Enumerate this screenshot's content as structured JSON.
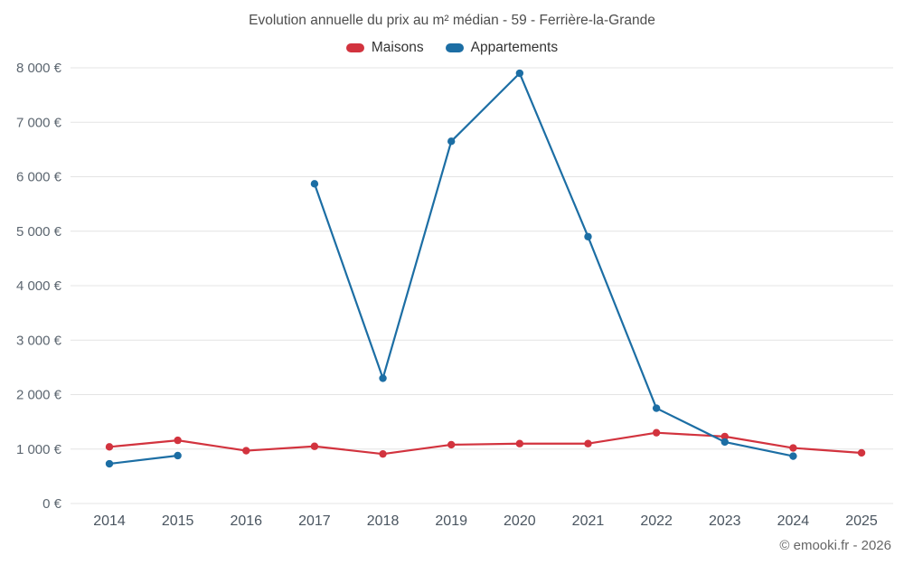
{
  "title": "Evolution annuelle du prix au m² médian - 59 - Ferrière-la-Grande",
  "footer": "© emooki.fr - 2026",
  "chart_data": {
    "type": "line",
    "title": "Evolution annuelle du prix au m² médian - 59 - Ferrière-la-Grande",
    "categories": [
      "2014",
      "2015",
      "2016",
      "2017",
      "2018",
      "2019",
      "2020",
      "2021",
      "2022",
      "2023",
      "2024",
      "2025"
    ],
    "series": [
      {
        "name": "Maisons",
        "color": "#d2333e",
        "values": [
          1040,
          1160,
          970,
          1050,
          910,
          1080,
          1100,
          1100,
          1300,
          1230,
          1020,
          930
        ]
      },
      {
        "name": "Appartements",
        "color": "#1c6ea4",
        "values": [
          730,
          880,
          null,
          5870,
          2300,
          6650,
          7900,
          4900,
          1750,
          1130,
          870,
          null
        ]
      }
    ],
    "ylim": [
      0,
      8000
    ],
    "ytick_step": 1000,
    "ytick_labels": [
      "0 €",
      "1 000 €",
      "2 000 €",
      "3 000 €",
      "4 000 €",
      "5 000 €",
      "6 000 €",
      "7 000 €",
      "8 000 €"
    ],
    "xlabel": "",
    "ylabel": "",
    "grid": "horizontal",
    "legend_position": "top"
  }
}
